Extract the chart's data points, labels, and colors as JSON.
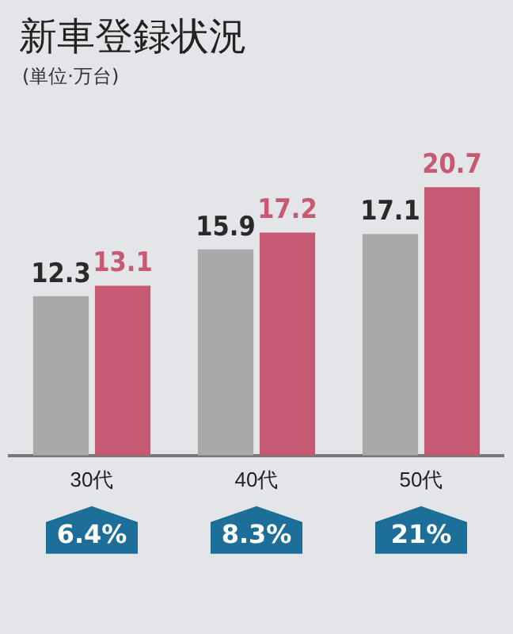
{
  "chart_data": {
    "type": "bar",
    "title": "新車登録状況",
    "subtitle": "(単位·万台)",
    "categories": [
      "30代",
      "40代",
      "50代"
    ],
    "series": [
      {
        "color": "#a9a9a9",
        "values": [
          12.3,
          15.9,
          17.1
        ],
        "value_labels": [
          "12.3",
          "15.9",
          "17.1"
        ]
      },
      {
        "color": "#c65a72",
        "values": [
          13.1,
          17.2,
          20.7
        ],
        "value_labels": [
          "13.1",
          "17.2",
          "20.7"
        ]
      }
    ],
    "annotations": [
      "6.4%",
      "8.3%",
      "21%"
    ],
    "grid": false,
    "legend": false
  }
}
